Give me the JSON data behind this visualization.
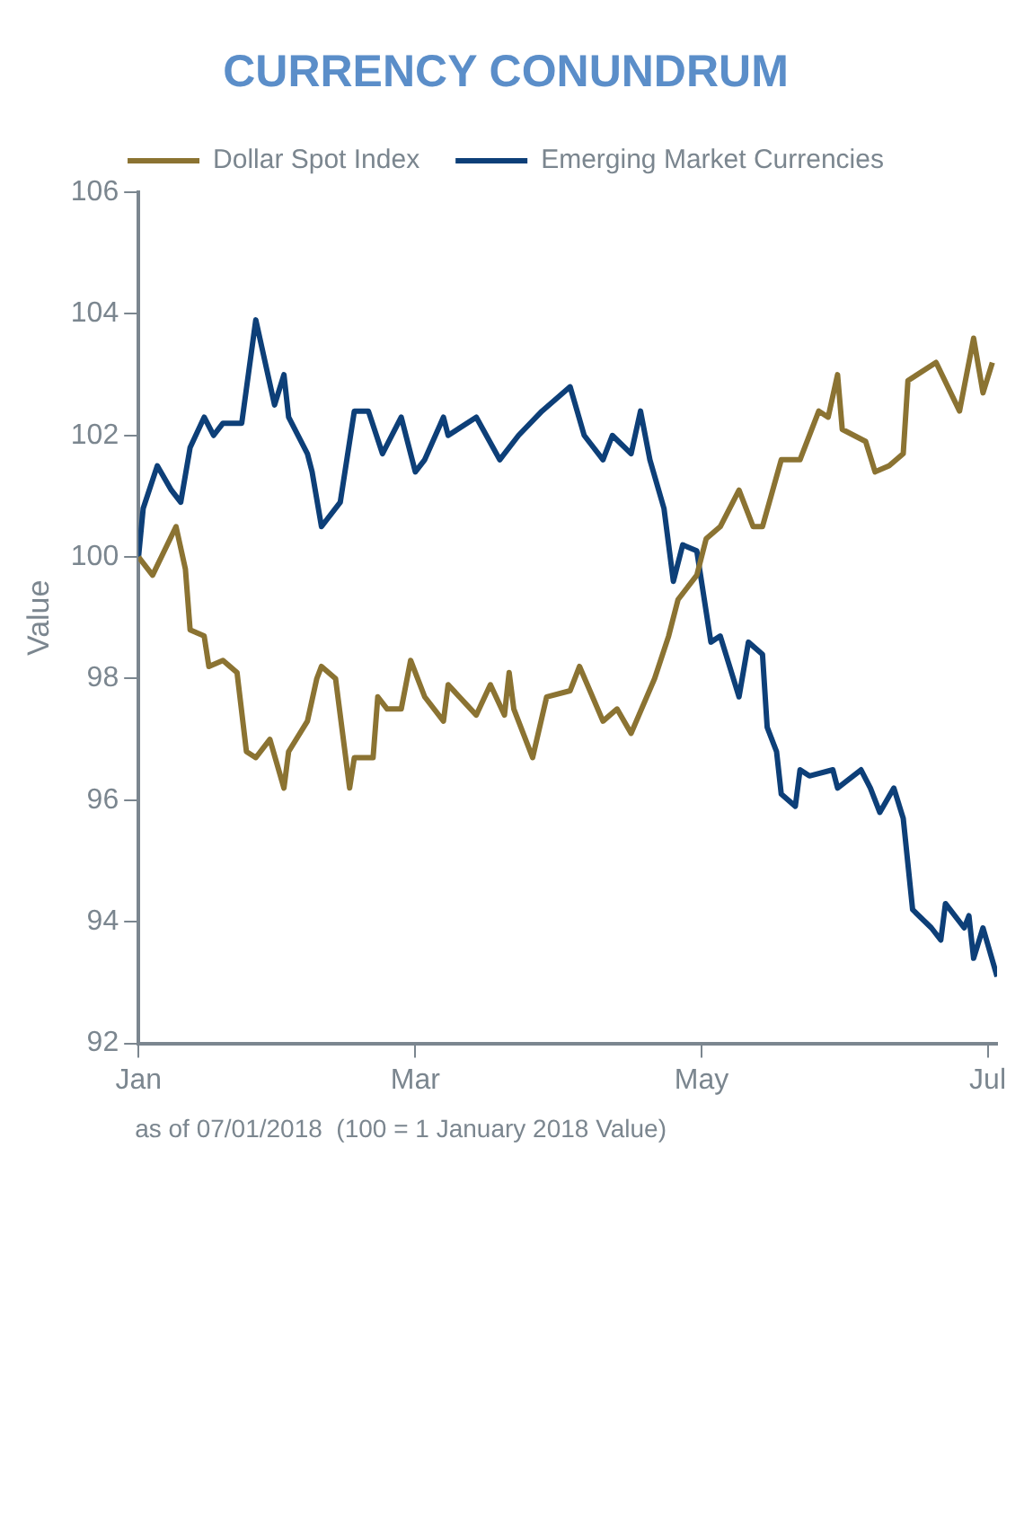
{
  "chart_data": {
    "type": "line",
    "title": "CURRENCY CONUNDRUM",
    "ylabel": "Value",
    "annotations": [
      "as of 07/01/2018  (100 = 1 January 2018 Value)"
    ],
    "xlim": [
      "2018-01-01",
      "2018-07-03"
    ],
    "xticks": [
      {
        "value": "2018-01-01",
        "label": "Jan"
      },
      {
        "value": "2018-03-01",
        "label": "Mar"
      },
      {
        "value": "2018-05-01",
        "label": "May"
      },
      {
        "value": "2018-07-01",
        "label": "Jul"
      }
    ],
    "ylim": [
      92,
      106
    ],
    "yticks": [
      92,
      94,
      96,
      98,
      100,
      102,
      104,
      106
    ],
    "grid": false,
    "legend": "top",
    "marker": "none",
    "series": [
      {
        "name": "Dollar Spot Index",
        "color": "#8b7332",
        "x": [
          "2018-01-01",
          "2018-01-04",
          "2018-01-09",
          "2018-01-11",
          "2018-01-12",
          "2018-01-15",
          "2018-01-16",
          "2018-01-19",
          "2018-01-22",
          "2018-01-24",
          "2018-01-26",
          "2018-01-29",
          "2018-02-01",
          "2018-02-02",
          "2018-02-06",
          "2018-02-08",
          "2018-02-09",
          "2018-02-12",
          "2018-02-15",
          "2018-02-16",
          "2018-02-20",
          "2018-02-21",
          "2018-02-23",
          "2018-02-26",
          "2018-02-28",
          "2018-03-03",
          "2018-03-07",
          "2018-03-08",
          "2018-03-14",
          "2018-03-17",
          "2018-03-20",
          "2018-03-21",
          "2018-03-22",
          "2018-03-26",
          "2018-03-29",
          "2018-04-03",
          "2018-04-05",
          "2018-04-10",
          "2018-04-13",
          "2018-04-16",
          "2018-04-21",
          "2018-04-24",
          "2018-04-26",
          "2018-04-30",
          "2018-05-02",
          "2018-05-05",
          "2018-05-09",
          "2018-05-12",
          "2018-05-14",
          "2018-05-18",
          "2018-05-22",
          "2018-05-26",
          "2018-05-28",
          "2018-05-30",
          "2018-05-31",
          "2018-06-05",
          "2018-06-07",
          "2018-06-10",
          "2018-06-13",
          "2018-06-14",
          "2018-06-20",
          "2018-06-25",
          "2018-06-28",
          "2018-06-30",
          "2018-07-02"
        ],
        "values": [
          100.0,
          99.7,
          100.5,
          99.8,
          98.8,
          98.7,
          98.2,
          98.3,
          98.1,
          96.8,
          96.7,
          97.0,
          96.2,
          96.8,
          97.3,
          98.0,
          98.2,
          98.0,
          96.2,
          96.7,
          96.7,
          97.7,
          97.5,
          97.5,
          98.3,
          97.7,
          97.3,
          97.9,
          97.4,
          97.9,
          97.4,
          98.1,
          97.5,
          96.7,
          97.7,
          97.8,
          98.2,
          97.3,
          97.5,
          97.1,
          98.0,
          98.7,
          99.3,
          99.7,
          100.3,
          100.5,
          101.1,
          100.5,
          100.5,
          101.6,
          101.6,
          102.4,
          102.3,
          103.0,
          102.1,
          101.9,
          101.4,
          101.5,
          101.7,
          102.9,
          103.2,
          102.4,
          103.6,
          102.7,
          103.2
        ]
      },
      {
        "name": "Emerging Market Currencies",
        "color": "#0d3f78",
        "x": [
          "2018-01-01",
          "2018-01-02",
          "2018-01-05",
          "2018-01-08",
          "2018-01-10",
          "2018-01-12",
          "2018-01-15",
          "2018-01-17",
          "2018-01-19",
          "2018-01-23",
          "2018-01-26",
          "2018-01-30",
          "2018-02-01",
          "2018-02-02",
          "2018-02-06",
          "2018-02-07",
          "2018-02-09",
          "2018-02-13",
          "2018-02-16",
          "2018-02-19",
          "2018-02-22",
          "2018-02-26",
          "2018-03-01",
          "2018-03-03",
          "2018-03-07",
          "2018-03-08",
          "2018-03-14",
          "2018-03-19",
          "2018-03-23",
          "2018-03-28",
          "2018-04-03",
          "2018-04-06",
          "2018-04-10",
          "2018-04-12",
          "2018-04-16",
          "2018-04-18",
          "2018-04-20",
          "2018-04-23",
          "2018-04-25",
          "2018-04-27",
          "2018-04-30",
          "2018-05-02",
          "2018-05-03",
          "2018-05-05",
          "2018-05-09",
          "2018-05-11",
          "2018-05-14",
          "2018-05-15",
          "2018-05-17",
          "2018-05-18",
          "2018-05-21",
          "2018-05-22",
          "2018-05-24",
          "2018-05-29",
          "2018-05-30",
          "2018-06-04",
          "2018-06-06",
          "2018-06-08",
          "2018-06-11",
          "2018-06-13",
          "2018-06-15",
          "2018-06-19",
          "2018-06-21",
          "2018-06-22",
          "2018-06-26",
          "2018-06-27",
          "2018-06-28",
          "2018-06-30",
          "2018-07-03"
        ],
        "values": [
          100.0,
          100.8,
          101.5,
          101.1,
          100.9,
          101.8,
          102.3,
          102.0,
          102.2,
          102.2,
          103.9,
          102.5,
          103.0,
          102.3,
          101.7,
          101.4,
          100.5,
          100.9,
          102.4,
          102.4,
          101.7,
          102.3,
          101.4,
          101.6,
          102.3,
          102.0,
          102.3,
          101.6,
          102.0,
          102.4,
          102.8,
          102.0,
          101.6,
          102.0,
          101.7,
          102.4,
          101.6,
          100.8,
          99.6,
          100.2,
          100.1,
          99.1,
          98.6,
          98.7,
          97.7,
          98.6,
          98.4,
          97.2,
          96.8,
          96.1,
          95.9,
          96.5,
          96.4,
          96.5,
          96.2,
          96.5,
          96.2,
          95.8,
          96.2,
          95.7,
          94.2,
          93.9,
          93.7,
          94.3,
          93.9,
          94.1,
          93.4,
          93.9,
          93.1
        ]
      }
    ]
  }
}
